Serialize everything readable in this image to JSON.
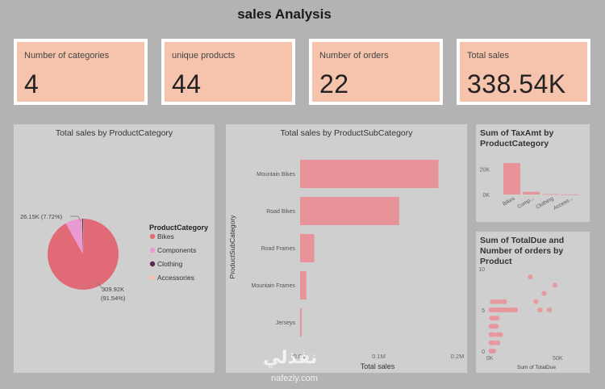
{
  "page": {
    "title": "sales Analysis"
  },
  "kpis": [
    {
      "label": "Number of categories",
      "value": "4"
    },
    {
      "label": "unique products",
      "value": "44"
    },
    {
      "label": "Number of orders",
      "value": "22"
    },
    {
      "label": "Total sales",
      "value": "338.54K"
    }
  ],
  "colors": {
    "pink": "#e8858f",
    "magenta": "#e99ad2",
    "dark": "#5a2b4a",
    "peach": "#f5c4b0",
    "panel": "#cfcfcf"
  },
  "chart_data": [
    {
      "type": "pie",
      "title": "Total sales by ProductCategory",
      "legend_title": "ProductCategory",
      "legend_position": "right",
      "labels": [
        "Bikes",
        "Components",
        "Clothing",
        "Accessories"
      ],
      "values": [
        309.92,
        26.15,
        1.9,
        0.57
      ],
      "data_labels": [
        {
          "category": "Bikes",
          "text1": "309.92K",
          "text2": "(91.54%)"
        },
        {
          "category": "Components",
          "text1": "26.15K (7.72%)",
          "text2": ""
        }
      ],
      "colors": [
        "#e06b77",
        "#e99ad2",
        "#5a2b4a",
        "#f5c4b0"
      ]
    },
    {
      "type": "bar",
      "orientation": "horizontal",
      "title": "Total sales by ProductSubCategory",
      "xlabel": "Total sales",
      "ylabel": "ProductSubCategory",
      "categories": [
        "Mountain Bikes",
        "Road Bikes",
        "Road Frames",
        "Mountain Frames",
        "Jerseys"
      ],
      "values": [
        0.176,
        0.126,
        0.018,
        0.008,
        0.002
      ],
      "xlim": [
        0,
        0.2
      ],
      "xticks": [
        "0.0M",
        "0.1M",
        "0.2M"
      ],
      "grid": false
    },
    {
      "type": "bar",
      "title": "Sum of TaxAmt by ProductCategory",
      "categories": [
        "Bikes",
        "Comp...",
        "Clothing",
        "Access..."
      ],
      "values": [
        24800,
        2090,
        300,
        50
      ],
      "ylim": [
        0,
        30000
      ],
      "yticks": [
        "0K",
        "20K"
      ]
    },
    {
      "type": "scatter",
      "title": "Sum of TotalDue and Number of orders by Product",
      "xlabel": "Sum of TotalDue",
      "xticks": [
        "0K",
        "50K"
      ],
      "yticks": [
        "0",
        "5",
        "10"
      ],
      "xlim": [
        0,
        70000
      ],
      "ylim": [
        0,
        10
      ],
      "points": [
        [
          30000,
          9
        ],
        [
          48000,
          8
        ],
        [
          40000,
          7
        ],
        [
          34000,
          6
        ],
        [
          37000,
          5
        ],
        [
          44000,
          5
        ],
        [
          1000,
          5
        ],
        [
          3000,
          5
        ],
        [
          5000,
          5
        ],
        [
          7000,
          5
        ],
        [
          9000,
          5
        ],
        [
          11000,
          5
        ],
        [
          13000,
          5
        ],
        [
          15000,
          5
        ],
        [
          17000,
          5
        ],
        [
          19000,
          5
        ],
        [
          2000,
          6
        ],
        [
          5000,
          6
        ],
        [
          8000,
          6
        ],
        [
          11000,
          6
        ],
        [
          1500,
          4
        ],
        [
          3500,
          4
        ],
        [
          5500,
          4
        ],
        [
          1000,
          3
        ],
        [
          3000,
          3
        ],
        [
          5000,
          3
        ],
        [
          1000,
          2
        ],
        [
          3000,
          2
        ],
        [
          6000,
          2
        ],
        [
          8000,
          2
        ],
        [
          1000,
          1
        ],
        [
          3000,
          1
        ],
        [
          6000,
          1
        ],
        [
          1000,
          0
        ],
        [
          3000,
          0
        ]
      ]
    }
  ],
  "watermark": {
    "text": "نفذلي",
    "sub": "nafezly.com"
  }
}
